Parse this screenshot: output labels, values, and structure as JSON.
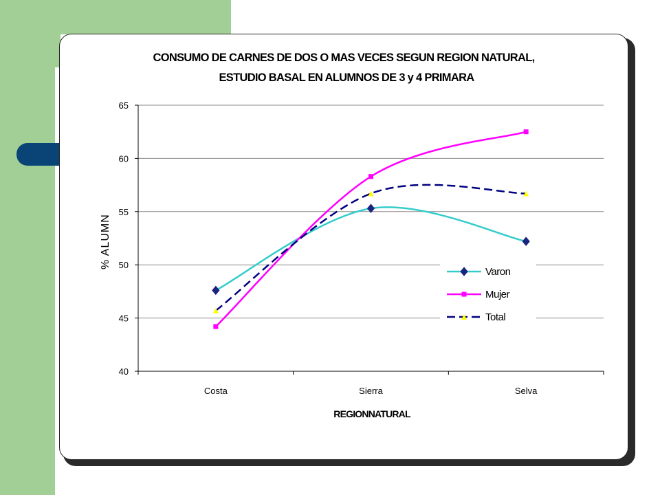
{
  "slide": {
    "colors": {
      "green": "#a1cf96",
      "blue_tab": "#0a4477",
      "card_border": "#222222"
    }
  },
  "chart_data": {
    "type": "line",
    "title_line1": "CONSUMO DE CARNES DE DOS O MAS VECES SEGUN REGION NATURAL,",
    "title_line2": "ESTUDIO BASAL EN ALUMNOS DE 3 y 4 PRIMARA",
    "xlabel": "REGIONNATURAL",
    "ylabel": "% ALUMN",
    "categories": [
      "Costa",
      "Sierra",
      "Selva"
    ],
    "ylim": [
      40,
      65
    ],
    "yticks": [
      "40",
      "45",
      "50",
      "55",
      "60",
      "65"
    ],
    "grid": true,
    "smooth": true,
    "legend_position": "right-middle",
    "series": [
      {
        "name": "Varon",
        "values": [
          47.6,
          55.3,
          52.2
        ],
        "color": "#33cccc",
        "marker": "diamond",
        "marker_color": "#1a237e",
        "dash": false
      },
      {
        "name": "Mujer",
        "values": [
          44.2,
          58.3,
          62.5
        ],
        "color": "#ff00ff",
        "marker": "square",
        "marker_color": "#ff00ff",
        "dash": false
      },
      {
        "name": "Total",
        "values": [
          45.7,
          56.7,
          56.7
        ],
        "color": "#000080",
        "marker": "triangle",
        "marker_color": "#ffff00",
        "dash": true
      }
    ]
  }
}
